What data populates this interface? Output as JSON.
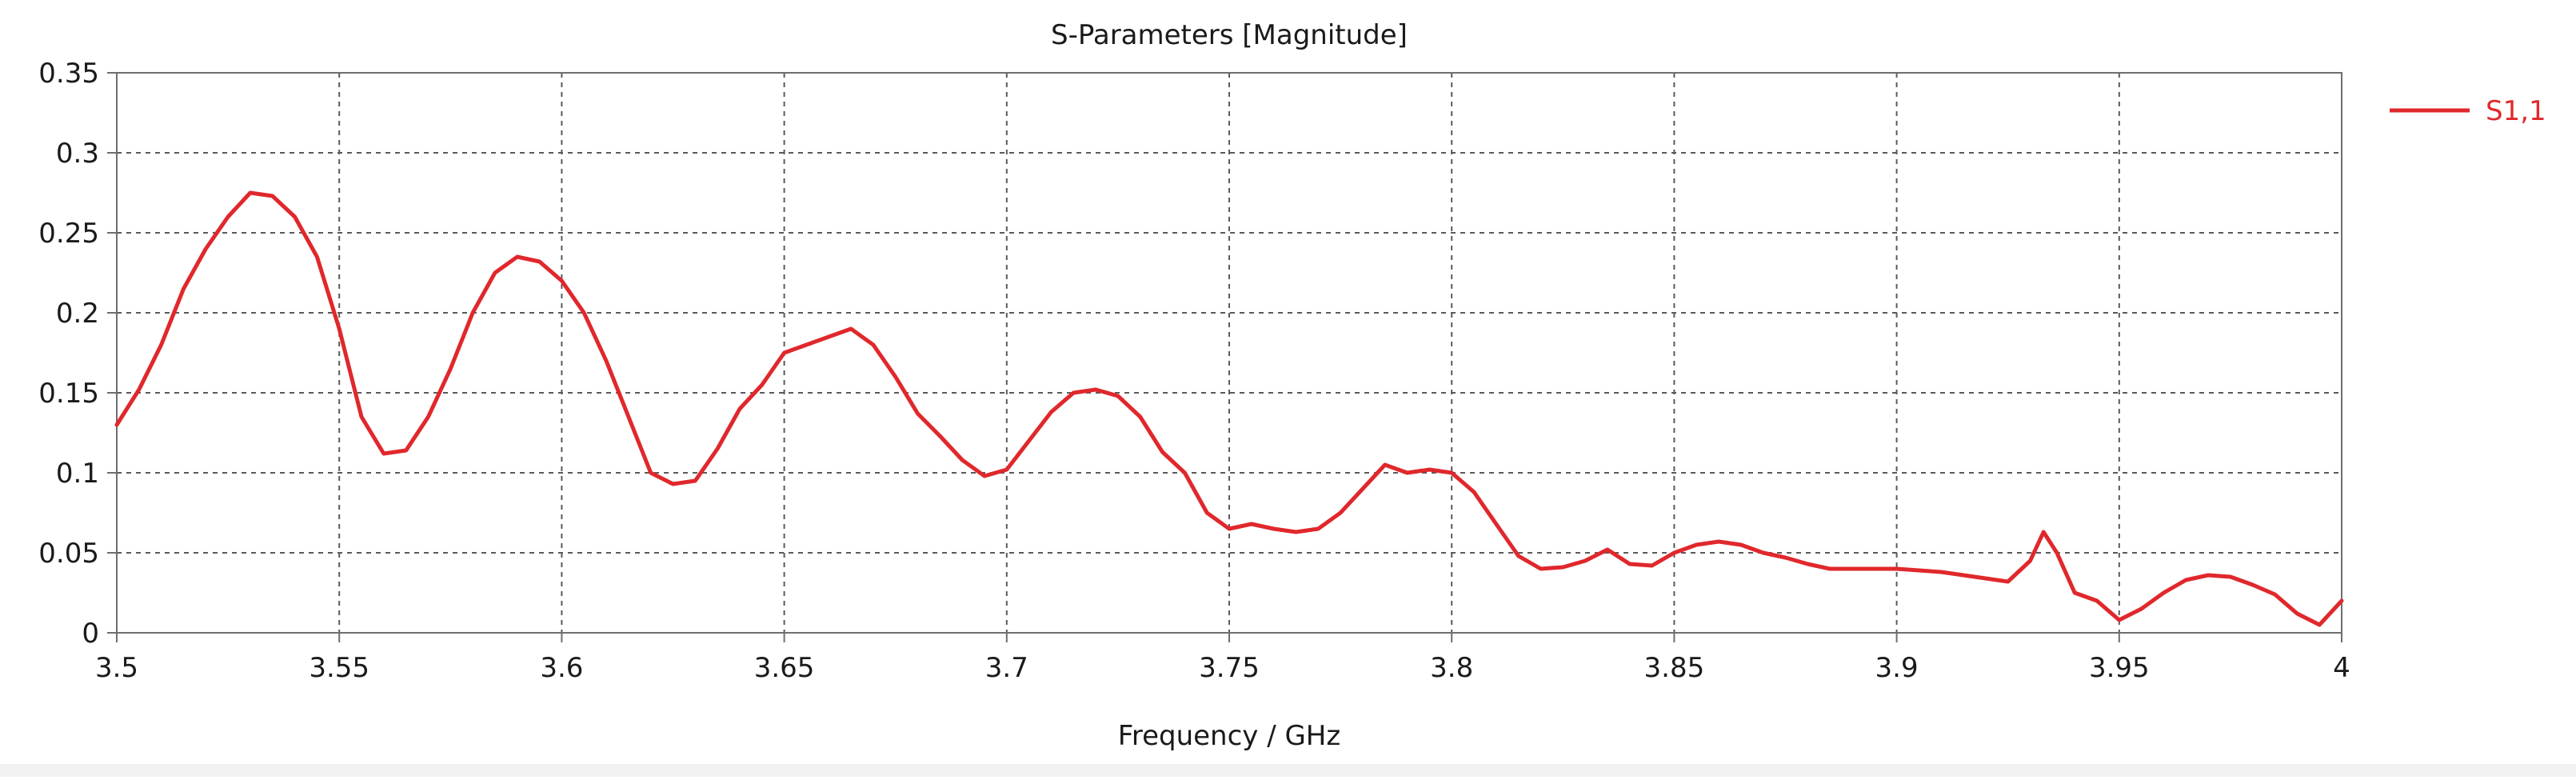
{
  "chart_data": {
    "type": "line",
    "title": "S-Parameters [Magnitude]",
    "xlabel": "Frequency / GHz",
    "ylabel": "",
    "xlim": [
      3.5,
      4.0
    ],
    "ylim": [
      0,
      0.35
    ],
    "x_ticks": [
      "3.5",
      "3.55",
      "3.6",
      "3.65",
      "3.7",
      "3.75",
      "3.8",
      "3.85",
      "3.9",
      "3.95",
      "4"
    ],
    "y_ticks": [
      "0",
      "0.05",
      "0.1",
      "0.15",
      "0.2",
      "0.25",
      "0.3",
      "0.35"
    ],
    "grid": true,
    "legend_position": "right",
    "series": [
      {
        "name": "S1,1",
        "color": "#e0282c",
        "x": [
          3.5,
          3.505,
          3.51,
          3.515,
          3.52,
          3.525,
          3.53,
          3.535,
          3.54,
          3.545,
          3.55,
          3.555,
          3.56,
          3.565,
          3.57,
          3.575,
          3.58,
          3.585,
          3.59,
          3.595,
          3.6,
          3.605,
          3.61,
          3.615,
          3.62,
          3.625,
          3.63,
          3.635,
          3.64,
          3.645,
          3.65,
          3.655,
          3.66,
          3.665,
          3.67,
          3.675,
          3.68,
          3.685,
          3.69,
          3.695,
          3.7,
          3.705,
          3.71,
          3.715,
          3.72,
          3.725,
          3.73,
          3.735,
          3.74,
          3.745,
          3.75,
          3.755,
          3.76,
          3.765,
          3.77,
          3.775,
          3.78,
          3.785,
          3.79,
          3.795,
          3.8,
          3.805,
          3.81,
          3.815,
          3.82,
          3.825,
          3.83,
          3.835,
          3.84,
          3.845,
          3.85,
          3.855,
          3.86,
          3.865,
          3.87,
          3.875,
          3.88,
          3.885,
          3.89,
          3.895,
          3.9,
          3.905,
          3.91,
          3.915,
          3.92,
          3.925,
          3.93,
          3.933,
          3.936,
          3.94,
          3.945,
          3.95,
          3.955,
          3.96,
          3.965,
          3.97,
          3.975,
          3.98,
          3.985,
          3.99,
          3.995,
          4.0
        ],
        "y": [
          0.13,
          0.152,
          0.18,
          0.215,
          0.24,
          0.26,
          0.275,
          0.273,
          0.26,
          0.235,
          0.19,
          0.135,
          0.112,
          0.114,
          0.135,
          0.165,
          0.2,
          0.225,
          0.235,
          0.232,
          0.22,
          0.2,
          0.17,
          0.135,
          0.1,
          0.093,
          0.095,
          0.115,
          0.14,
          0.155,
          0.175,
          0.18,
          0.185,
          0.19,
          0.18,
          0.16,
          0.137,
          0.123,
          0.108,
          0.098,
          0.102,
          0.12,
          0.138,
          0.15,
          0.152,
          0.148,
          0.135,
          0.113,
          0.1,
          0.075,
          0.065,
          0.068,
          0.065,
          0.063,
          0.065,
          0.075,
          0.09,
          0.105,
          0.1,
          0.102,
          0.1,
          0.088,
          0.068,
          0.048,
          0.04,
          0.041,
          0.045,
          0.052,
          0.043,
          0.042,
          0.05,
          0.055,
          0.057,
          0.055,
          0.05,
          0.047,
          0.043,
          0.04,
          0.04,
          0.04,
          0.04,
          0.039,
          0.038,
          0.036,
          0.034,
          0.032,
          0.045,
          0.063,
          0.05,
          0.025,
          0.02,
          0.008,
          0.015,
          0.025,
          0.033,
          0.036,
          0.035,
          0.03,
          0.024,
          0.012,
          0.005,
          0.02
        ]
      }
    ]
  }
}
